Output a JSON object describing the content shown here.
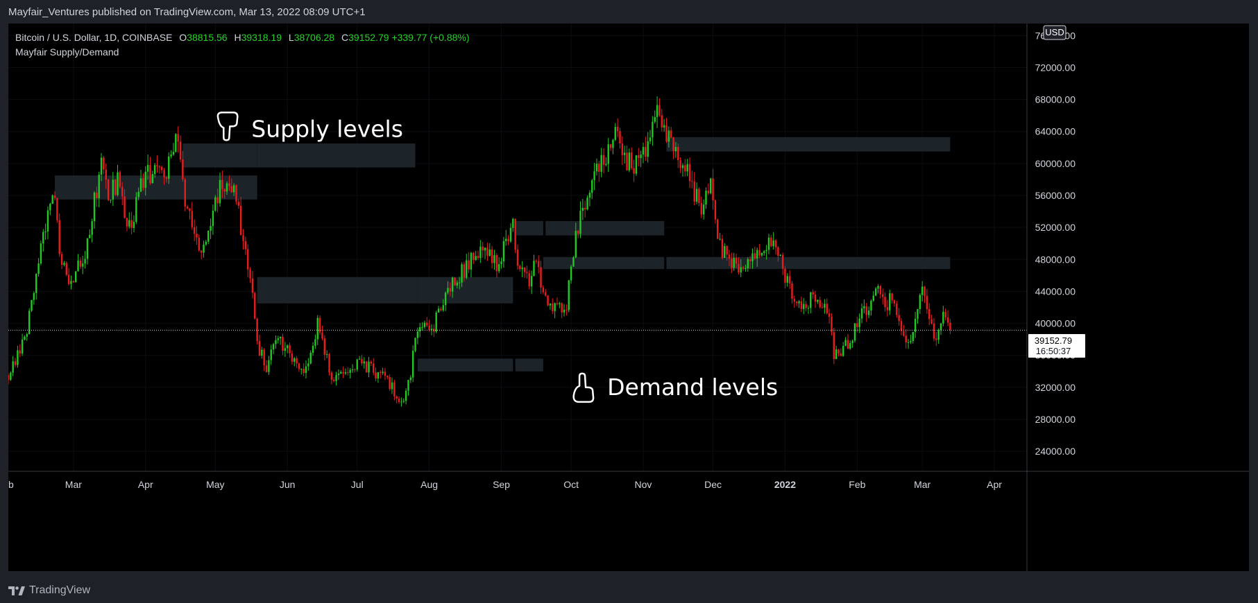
{
  "publish_line": "Mayfair_Ventures published on TradingView.com, Mar 13, 2022 08:09 UTC+1",
  "legend": {
    "symbol": "Bitcoin / U.S. Dollar, 1D, COINBASE",
    "o_label": "O",
    "o": "38815.56",
    "h_label": "H",
    "h": "39318.19",
    "l_label": "L",
    "l": "38706.28",
    "c_label": "C",
    "c": "39152.79",
    "change": "+339.77 (+0.88%)",
    "indicator": "Mayfair Supply/Demand"
  },
  "currency_badge": "USD",
  "price_tag": {
    "price": "39152.79",
    "countdown": "16:50:37"
  },
  "footer": {
    "brand": "TradingView"
  },
  "colors": {
    "up": "#22c922",
    "down": "#e81e1e",
    "zone": "#1c2329",
    "bg": "#000000",
    "panel": "#1e2127"
  },
  "chart_data": {
    "type": "candlestick",
    "y_range": [
      21500,
      77500
    ],
    "y_ticks": [
      "24000.00",
      "28000.00",
      "32000.00",
      "36000.00",
      "40000.00",
      "44000.00",
      "48000.00",
      "52000.00",
      "56000.00",
      "60000.00",
      "64000.00",
      "68000.00",
      "72000.00",
      "76000.00"
    ],
    "x_range": [
      "2021-02-01",
      "2022-04-15"
    ],
    "x_ticks": [
      {
        "label": "eb",
        "date": "2021-02-01"
      },
      {
        "label": "Mar",
        "date": "2021-03-01"
      },
      {
        "label": "Apr",
        "date": "2021-04-01"
      },
      {
        "label": "May",
        "date": "2021-05-01"
      },
      {
        "label": "Jun",
        "date": "2021-06-01"
      },
      {
        "label": "Jul",
        "date": "2021-07-01"
      },
      {
        "label": "Aug",
        "date": "2021-08-01"
      },
      {
        "label": "Sep",
        "date": "2021-09-01"
      },
      {
        "label": "Oct",
        "date": "2021-10-01"
      },
      {
        "label": "Nov",
        "date": "2021-11-01"
      },
      {
        "label": "Dec",
        "date": "2021-12-01"
      },
      {
        "label": "2022",
        "date": "2022-01-01",
        "bold": true
      },
      {
        "label": "Feb",
        "date": "2022-02-01"
      },
      {
        "label": "Mar",
        "date": "2022-03-01"
      },
      {
        "label": "Apr",
        "date": "2022-04-01"
      }
    ],
    "last_price": 39152.79,
    "price_path": [
      [
        "2021-02-01",
        33500
      ],
      [
        "2021-02-08",
        38000
      ],
      [
        "2021-02-14",
        47500
      ],
      [
        "2021-02-21",
        57000
      ],
      [
        "2021-02-23",
        48000
      ],
      [
        "2021-02-28",
        45000
      ],
      [
        "2021-03-06",
        49000
      ],
      [
        "2021-03-13",
        59500
      ],
      [
        "2021-03-16",
        55500
      ],
      [
        "2021-03-20",
        58000
      ],
      [
        "2021-03-25",
        52000
      ],
      [
        "2021-04-01",
        58800
      ],
      [
        "2021-04-09",
        58000
      ],
      [
        "2021-04-14",
        63500
      ],
      [
        "2021-04-18",
        56000
      ],
      [
        "2021-04-25",
        49000
      ],
      [
        "2021-05-03",
        57000
      ],
      [
        "2021-05-10",
        56500
      ],
      [
        "2021-05-13",
        50000
      ],
      [
        "2021-05-17",
        44000
      ],
      [
        "2021-05-19",
        37500
      ],
      [
        "2021-05-23",
        34500
      ],
      [
        "2021-05-27",
        38000
      ],
      [
        "2021-06-01",
        36500
      ],
      [
        "2021-06-08",
        33500
      ],
      [
        "2021-06-14",
        40000
      ],
      [
        "2021-06-21",
        32500
      ],
      [
        "2021-06-30",
        35000
      ],
      [
        "2021-07-06",
        34500
      ],
      [
        "2021-07-14",
        32800
      ],
      [
        "2021-07-20",
        29900
      ],
      [
        "2021-07-24",
        33800
      ],
      [
        "2021-07-27",
        39500
      ],
      [
        "2021-08-02",
        38800
      ],
      [
        "2021-08-08",
        44000
      ],
      [
        "2021-08-14",
        46000
      ],
      [
        "2021-08-23",
        49500
      ],
      [
        "2021-08-30",
        47000
      ],
      [
        "2021-09-06",
        52000
      ],
      [
        "2021-09-08",
        46500
      ],
      [
        "2021-09-13",
        45500
      ],
      [
        "2021-09-16",
        48000
      ],
      [
        "2021-09-21",
        41500
      ],
      [
        "2021-09-29",
        41800
      ],
      [
        "2021-10-01",
        47500
      ],
      [
        "2021-10-06",
        55000
      ],
      [
        "2021-10-15",
        60500
      ],
      [
        "2021-10-20",
        65000
      ],
      [
        "2021-10-22",
        62000
      ],
      [
        "2021-10-28",
        59000
      ],
      [
        "2021-11-01",
        61500
      ],
      [
        "2021-11-08",
        66500
      ],
      [
        "2021-11-10",
        65000
      ],
      [
        "2021-11-16",
        60500
      ],
      [
        "2021-11-20",
        59000
      ],
      [
        "2021-11-26",
        54000
      ],
      [
        "2021-11-30",
        57500
      ],
      [
        "2021-12-04",
        49500
      ],
      [
        "2021-12-10",
        47500
      ],
      [
        "2021-12-16",
        47000
      ],
      [
        "2021-12-27",
        50500
      ],
      [
        "2021-12-31",
        46500
      ],
      [
        "2022-01-06",
        43000
      ],
      [
        "2022-01-10",
        41800
      ],
      [
        "2022-01-13",
        43500
      ],
      [
        "2022-01-20",
        41000
      ],
      [
        "2022-01-22",
        36000
      ],
      [
        "2022-01-28",
        37500
      ],
      [
        "2022-02-04",
        41500
      ],
      [
        "2022-02-10",
        44500
      ],
      [
        "2022-02-13",
        42000
      ],
      [
        "2022-02-16",
        43500
      ],
      [
        "2022-02-19",
        40000
      ],
      [
        "2022-02-24",
        37500
      ],
      [
        "2022-02-28",
        43500
      ],
      [
        "2022-03-02",
        44000
      ],
      [
        "2022-03-06",
        38500
      ],
      [
        "2022-03-08",
        38800
      ],
      [
        "2022-03-10",
        41000
      ],
      [
        "2022-03-13",
        39152.79
      ]
    ],
    "zones": [
      {
        "kind": "supply",
        "start": "2021-02-21",
        "end": "2021-05-19",
        "low": 55500,
        "high": 58500
      },
      {
        "kind": "supply",
        "start": "2021-04-17",
        "end": "2021-05-19",
        "low": 59500,
        "high": 62500
      },
      {
        "kind": "supply",
        "start": "2021-05-19",
        "end": "2021-07-26",
        "low": 59500,
        "high": 62500
      },
      {
        "kind": "supply",
        "start": "2021-05-19",
        "end": "2021-07-27",
        "low": 42500,
        "high": 45800
      },
      {
        "kind": "supply",
        "start": "2021-07-27",
        "end": "2021-09-06",
        "low": 42500,
        "high": 45800
      },
      {
        "kind": "demand",
        "start": "2021-07-27",
        "end": "2021-09-06",
        "low": 34000,
        "high": 35600
      },
      {
        "kind": "demand",
        "start": "2021-09-07",
        "end": "2021-09-19",
        "low": 34000,
        "high": 35600
      },
      {
        "kind": "supply",
        "start": "2021-09-07",
        "end": "2021-09-19",
        "low": 51000,
        "high": 52800
      },
      {
        "kind": "supply",
        "start": "2021-09-20",
        "end": "2021-11-10",
        "low": 51000,
        "high": 52800
      },
      {
        "kind": "supply",
        "start": "2021-09-19",
        "end": "2021-11-10",
        "low": 46800,
        "high": 48300
      },
      {
        "kind": "supply",
        "start": "2021-11-11",
        "end": "2022-03-13",
        "low": 46800,
        "high": 48300
      },
      {
        "kind": "supply",
        "start": "2021-11-11",
        "end": "2022-03-13",
        "low": 61500,
        "high": 63300
      }
    ],
    "annotations": [
      {
        "text": "Supply levels",
        "icon": "hand-pointing-down-icon",
        "date": "2021-05-01",
        "price": 64300
      },
      {
        "text": "Demand levels",
        "icon": "hand-pointing-up-icon",
        "date": "2021-10-01",
        "price": 32000
      }
    ]
  }
}
